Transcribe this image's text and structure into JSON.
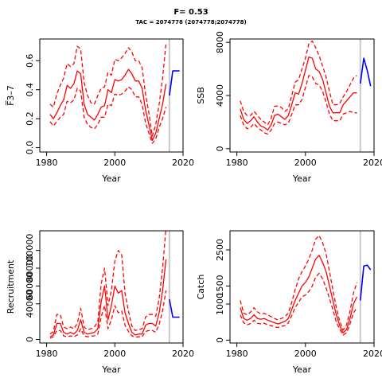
{
  "title": "F= 0.53",
  "subtitle": "TAC = 2074778 (2074778;2074778)",
  "chart_data": [
    {
      "type": "line",
      "ylabel": "F̅3–7",
      "xlabel": "Year",
      "xlim": [
        1978,
        2020
      ],
      "ylim": [
        -0.03,
        0.75
      ],
      "xticks": [
        1980,
        2000,
        2020
      ],
      "yticks": [
        0.0,
        0.2,
        0.4,
        0.6
      ],
      "ytick_labels": [
        "0.0",
        "0.2",
        "0.4",
        "0.6"
      ],
      "vline": 2016,
      "x": [
        1981,
        1982,
        1983,
        1984,
        1985,
        1986,
        1987,
        1988,
        1989,
        1990,
        1991,
        1992,
        1993,
        1994,
        1995,
        1996,
        1997,
        1998,
        1999,
        2000,
        2001,
        2002,
        2003,
        2004,
        2005,
        2006,
        2007,
        2008,
        2009,
        2010,
        2011,
        2012,
        2013,
        2014,
        2015
      ],
      "series": [
        {
          "role": "estimate",
          "values": [
            0.23,
            0.2,
            0.24,
            0.29,
            0.33,
            0.43,
            0.41,
            0.44,
            0.53,
            0.51,
            0.3,
            0.23,
            0.21,
            0.19,
            0.23,
            0.28,
            0.29,
            0.4,
            0.38,
            0.47,
            0.46,
            0.47,
            0.5,
            0.54,
            0.51,
            0.46,
            0.46,
            0.41,
            0.26,
            0.16,
            0.05,
            0.1,
            0.2,
            0.3,
            0.44
          ]
        },
        {
          "role": "upper",
          "values": [
            0.3,
            0.28,
            0.37,
            0.43,
            0.48,
            0.58,
            0.56,
            0.58,
            0.7,
            0.68,
            0.45,
            0.36,
            0.31,
            0.3,
            0.36,
            0.41,
            0.42,
            0.52,
            0.5,
            0.61,
            0.6,
            0.62,
            0.65,
            0.69,
            0.66,
            0.6,
            0.6,
            0.55,
            0.37,
            0.24,
            0.08,
            0.16,
            0.3,
            0.48,
            0.72
          ]
        },
        {
          "role": "lower",
          "values": [
            0.18,
            0.15,
            0.18,
            0.21,
            0.23,
            0.32,
            0.31,
            0.33,
            0.41,
            0.39,
            0.21,
            0.16,
            0.14,
            0.13,
            0.16,
            0.21,
            0.21,
            0.3,
            0.29,
            0.37,
            0.36,
            0.37,
            0.39,
            0.42,
            0.4,
            0.35,
            0.35,
            0.3,
            0.17,
            0.1,
            0.03,
            0.06,
            0.14,
            0.2,
            0.28
          ]
        },
        {
          "role": "projection",
          "x": [
            2016,
            2017,
            2018,
            2019
          ],
          "values": [
            0.36,
            0.53,
            0.53,
            0.53
          ]
        }
      ]
    },
    {
      "type": "line",
      "ylabel": "SSB",
      "xlabel": "Year",
      "xlim": [
        1978,
        2020
      ],
      "ylim": [
        -250,
        8250
      ],
      "xticks": [
        1980,
        2000,
        2020
      ],
      "yticks": [
        0,
        4000,
        8000
      ],
      "ytick_labels": [
        "0",
        "4000",
        "8000"
      ],
      "vline": 2016,
      "x": [
        1981,
        1982,
        1983,
        1984,
        1985,
        1986,
        1987,
        1988,
        1989,
        1990,
        1991,
        1992,
        1993,
        1994,
        1995,
        1996,
        1997,
        1998,
        1999,
        2000,
        2001,
        2002,
        2003,
        2004,
        2005,
        2006,
        2007,
        2008,
        2009,
        2010,
        2011,
        2012,
        2013,
        2014,
        2015
      ],
      "series": [
        {
          "role": "estimate",
          "values": [
            3000,
            2200,
            1900,
            2100,
            2400,
            2000,
            1700,
            1600,
            1400,
            1800,
            2500,
            2600,
            2400,
            2200,
            2500,
            3300,
            4200,
            4100,
            4900,
            5900,
            6900,
            6800,
            6000,
            5800,
            5200,
            4200,
            3200,
            2700,
            2700,
            2700,
            3300,
            3600,
            3900,
            4200,
            4200
          ]
        },
        {
          "role": "upper",
          "values": [
            3600,
            2800,
            2500,
            2500,
            2800,
            2500,
            2200,
            2000,
            1800,
            2300,
            3200,
            3200,
            3100,
            2800,
            3000,
            4000,
            5000,
            5200,
            6000,
            6800,
            7900,
            8100,
            7600,
            7000,
            6200,
            5400,
            4300,
            3300,
            3300,
            3400,
            3900,
            4300,
            4800,
            5300,
            5500
          ]
        },
        {
          "role": "lower",
          "values": [
            2500,
            1800,
            1500,
            1600,
            1900,
            1600,
            1400,
            1200,
            1100,
            1400,
            1900,
            2000,
            1900,
            1800,
            1900,
            2600,
            3300,
            3300,
            3700,
            4600,
            5500,
            5400,
            4900,
            4800,
            4300,
            3500,
            2600,
            2100,
            2100,
            2100,
            2600,
            2700,
            2800,
            2700,
            2700
          ]
        },
        {
          "role": "projection",
          "x": [
            2016,
            2017,
            2018,
            2019
          ],
          "values": [
            4900,
            6800,
            5900,
            4700
          ]
        }
      ]
    },
    {
      "type": "line",
      "ylabel": "Recruitment",
      "xlabel": "Year",
      "xlim": [
        1978,
        2020
      ],
      "ylim": [
        -4000,
        122000
      ],
      "xticks": [
        1980,
        2000,
        2020
      ],
      "yticks": [
        0,
        40000,
        60000,
        80000,
        100000
      ],
      "ytick_labels": [
        "0",
        "40000",
        "60000",
        "80000",
        "100000"
      ],
      "vline": 2016,
      "x": [
        1981,
        1982,
        1983,
        1984,
        1985,
        1986,
        1987,
        1988,
        1989,
        1990,
        1991,
        1992,
        1993,
        1994,
        1995,
        1996,
        1997,
        1998,
        1999,
        2000,
        2001,
        2002,
        2003,
        2004,
        2005,
        2006,
        2007,
        2008,
        2009,
        2010,
        2011,
        2012,
        2013,
        2014,
        2015
      ],
      "series": [
        {
          "role": "estimate",
          "values": [
            3000,
            5000,
            18000,
            18000,
            8000,
            6000,
            8000,
            6000,
            10000,
            22000,
            8000,
            6000,
            7000,
            8000,
            12000,
            42000,
            60000,
            22000,
            38000,
            60000,
            52000,
            55000,
            30000,
            18000,
            8000,
            5000,
            6000,
            6000,
            16000,
            18000,
            18000,
            15000,
            30000,
            55000,
            90000
          ]
        },
        {
          "role": "upper",
          "values": [
            6000,
            9000,
            28000,
            28000,
            14000,
            12000,
            14000,
            12000,
            18000,
            35000,
            14000,
            11000,
            12000,
            14000,
            20000,
            62000,
            80000,
            38000,
            55000,
            88000,
            100000,
            95000,
            52000,
            32000,
            15000,
            10000,
            11000,
            12000,
            25000,
            28000,
            28000,
            26000,
            46000,
            80000,
            125000
          ]
        },
        {
          "role": "lower",
          "values": [
            1500,
            3000,
            10000,
            10000,
            4000,
            3000,
            4000,
            3000,
            5000,
            12000,
            4000,
            3000,
            3500,
            4000,
            6000,
            25000,
            38000,
            12000,
            22000,
            38000,
            30000,
            32000,
            16000,
            9000,
            4000,
            2500,
            3000,
            3000,
            9000,
            10000,
            10000,
            8000,
            17000,
            32000,
            55000
          ]
        },
        {
          "role": "projection",
          "x": [
            2016,
            2017,
            2018,
            2019
          ],
          "values": [
            45000,
            25000,
            25000,
            25000
          ]
        }
      ]
    },
    {
      "type": "line",
      "ylabel": "Catch",
      "xlabel": "Year",
      "xlim": [
        1978,
        2020
      ],
      "ylim": [
        -80,
        3030
      ],
      "xticks": [
        1980,
        2000,
        2020
      ],
      "yticks": [
        0,
        1000,
        1500,
        2500
      ],
      "ytick_labels": [
        "0",
        "1000",
        "1500",
        "2500"
      ],
      "vline": 2016,
      "x": [
        1981,
        1982,
        1983,
        1984,
        1985,
        1986,
        1987,
        1988,
        1989,
        1990,
        1991,
        1992,
        1993,
        1994,
        1995,
        1996,
        1997,
        1998,
        1999,
        2000,
        2001,
        2002,
        2003,
        2004,
        2005,
        2006,
        2007,
        2008,
        2009,
        2010,
        2011,
        2012,
        2013,
        2014,
        2015
      ],
      "series": [
        {
          "role": "estimate",
          "values": [
            900,
            600,
            550,
            600,
            700,
            600,
            580,
            600,
            550,
            520,
            480,
            450,
            480,
            520,
            600,
            850,
            1100,
            1300,
            1500,
            1600,
            1750,
            2000,
            2250,
            2350,
            2150,
            1900,
            1500,
            1100,
            700,
            400,
            200,
            300,
            600,
            1000,
            1200
          ]
        },
        {
          "role": "upper",
          "values": [
            1100,
            750,
            700,
            780,
            900,
            780,
            720,
            740,
            700,
            650,
            600,
            560,
            600,
            650,
            750,
            1050,
            1400,
            1700,
            1900,
            2050,
            2250,
            2500,
            2800,
            2900,
            2700,
            2400,
            1900,
            1400,
            900,
            520,
            280,
            420,
            800,
            1300,
            1600
          ]
        },
        {
          "role": "lower",
          "values": [
            700,
            480,
            420,
            460,
            550,
            470,
            450,
            470,
            420,
            400,
            370,
            350,
            380,
            400,
            480,
            680,
            900,
            1050,
            1200,
            1250,
            1350,
            1500,
            1750,
            1850,
            1700,
            1450,
            1150,
            850,
            500,
            300,
            140,
            200,
            450,
            750,
            900
          ]
        },
        {
          "role": "projection",
          "x": [
            2016,
            2017,
            2018,
            2019
          ],
          "values": [
            1100,
            2050,
            2080,
            1950
          ]
        }
      ]
    }
  ]
}
